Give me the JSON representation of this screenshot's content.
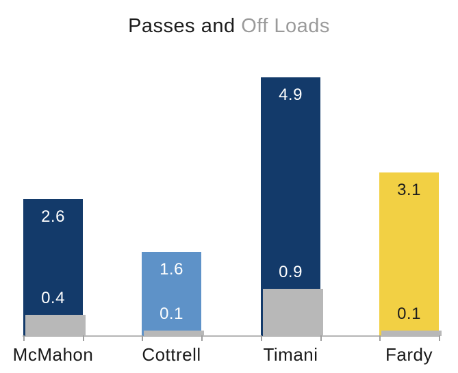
{
  "title": {
    "part1": "Passes and",
    "part2": " Off Loads"
  },
  "colors": {
    "navy": "#133a6a",
    "light_blue": "#5e92c8",
    "yellow": "#f2d044",
    "offload_gray": "#b8b8b8",
    "axis_gray": "#b5b5b5",
    "title_black": "#1b1b1b",
    "title_gray": "#9a9a9a",
    "label_on_dark": "#ffffff",
    "label_on_yellow": "#1d1d1d"
  },
  "chart_data": {
    "type": "bar",
    "title": "Passes and Off Loads",
    "xlabel": "",
    "ylabel": "",
    "ylim": [
      0,
      5.2
    ],
    "grid": false,
    "legend_position": "encoded-in-title-colors",
    "categories": [
      "McMahon",
      "Cottrell",
      "Timani",
      "Fardy"
    ],
    "series": [
      {
        "name": "Passes",
        "values": [
          2.6,
          1.6,
          4.9,
          3.1
        ],
        "bar_colors": [
          "#133a6a",
          "#5e92c8",
          "#133a6a",
          "#f2d044"
        ],
        "value_label_colors": [
          "#ffffff",
          "#ffffff",
          "#ffffff",
          "#1d1d1d"
        ]
      },
      {
        "name": "Off Loads",
        "values": [
          0.4,
          0.1,
          0.9,
          0.1
        ],
        "bar_colors": [
          "#b8b8b8",
          "#b8b8b8",
          "#b8b8b8",
          "#b8b8b8"
        ],
        "value_label_colors": [
          "#ffffff",
          "#ffffff",
          "#ffffff",
          "#1d1d1d"
        ]
      }
    ]
  }
}
